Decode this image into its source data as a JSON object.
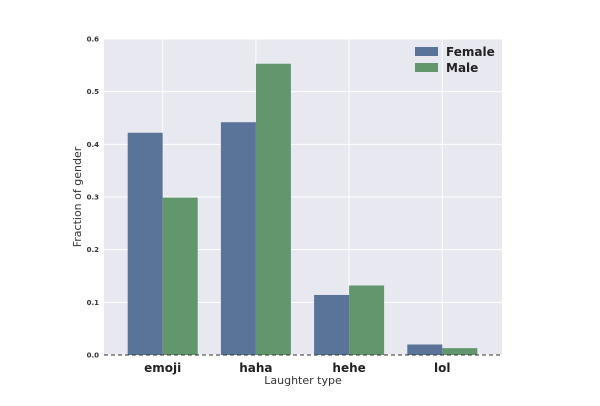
{
  "chart_data": {
    "type": "bar",
    "title": "",
    "xlabel": "Laughter type",
    "ylabel": "Fraction of gender",
    "categories": [
      "emoji",
      "haha",
      "hehe",
      "lol"
    ],
    "series": [
      {
        "name": "Female",
        "color": "#5a7399",
        "values": [
          0.422,
          0.442,
          0.114,
          0.02
        ]
      },
      {
        "name": "Male",
        "color": "#62966c",
        "values": [
          0.299,
          0.553,
          0.132,
          0.013
        ]
      }
    ],
    "ylim": [
      0,
      0.6
    ],
    "yticks": [
      "0.0",
      "0.1",
      "0.2",
      "0.3",
      "0.4",
      "0.5",
      "0.6"
    ],
    "grid": true,
    "legend": "top-right",
    "background": "#e8e8f0"
  }
}
